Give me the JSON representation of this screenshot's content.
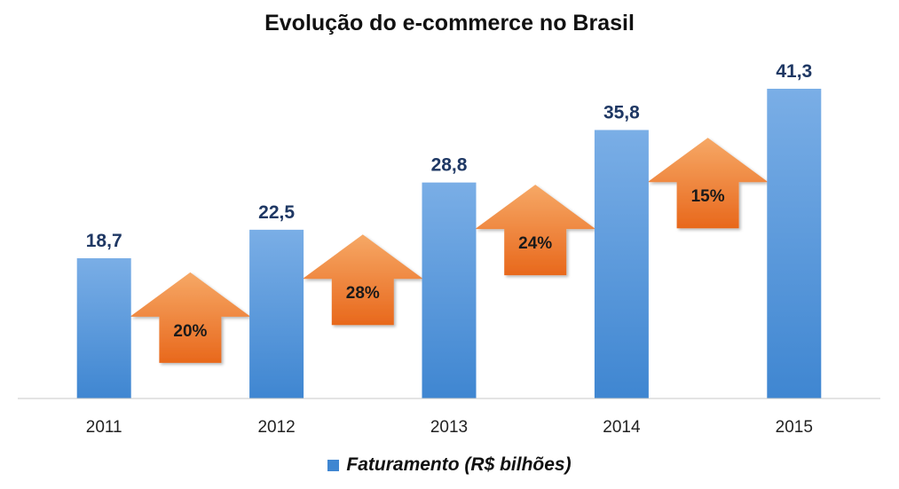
{
  "chart_data": {
    "type": "bar",
    "title": "Evolução do e-commerce no Brasil",
    "categories": [
      "2011",
      "2012",
      "2013",
      "2014",
      "2015"
    ],
    "series": [
      {
        "name": "Faturamento (R$ bilhões)",
        "values": [
          18.7,
          22.5,
          28.8,
          35.8,
          41.3
        ]
      }
    ],
    "value_labels": [
      "18,7",
      "22,5",
      "28,8",
      "35,8",
      "41,3"
    ],
    "growth_annotations": [
      "20%",
      "28%",
      "24%",
      "15%"
    ],
    "ylim": [
      0,
      45
    ],
    "grid": false,
    "legend_position": "bottom",
    "colors": {
      "bar_light": "#7aaee6",
      "bar_dark": "#3f86d1",
      "arrow_light": "#f6a866",
      "arrow_dark": "#e8681c"
    }
  }
}
